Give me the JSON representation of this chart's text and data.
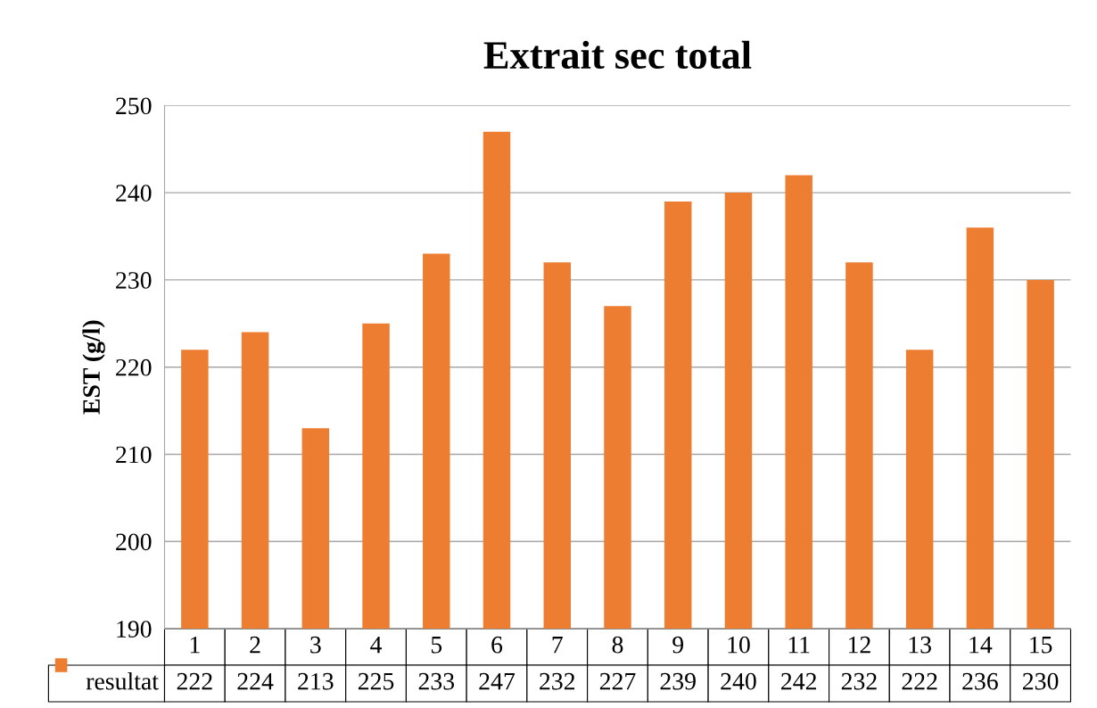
{
  "chart_data": {
    "type": "bar",
    "title": "Extrait sec total",
    "ylabel": "EST (g/l)",
    "categories": [
      "1",
      "2",
      "3",
      "4",
      "5",
      "6",
      "7",
      "8",
      "9",
      "10",
      "11",
      "12",
      "13",
      "14",
      "15"
    ],
    "series": [
      {
        "name": "resultat",
        "color": "#ed7d31",
        "values": [
          222,
          224,
          213,
          225,
          233,
          247,
          232,
          227,
          239,
          240,
          242,
          232,
          222,
          236,
          230
        ]
      }
    ],
    "ylim": [
      190,
      250
    ],
    "yticks": [
      190,
      200,
      210,
      220,
      230,
      240,
      250
    ],
    "grid": "y",
    "legend": "bottom",
    "data_labels": true
  }
}
